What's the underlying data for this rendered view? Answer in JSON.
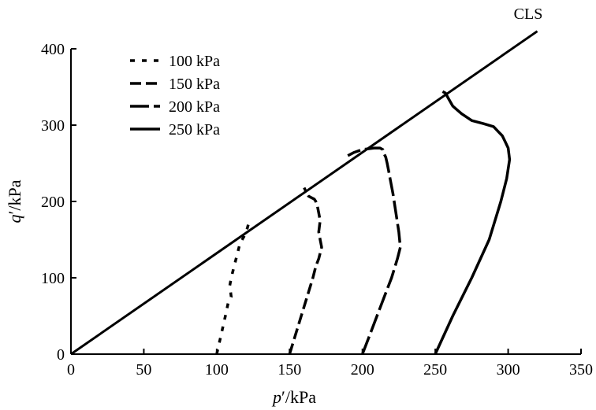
{
  "chart_data": {
    "type": "line",
    "xlabel": "p′/kPa",
    "ylabel": "q′/kPa",
    "xlim": [
      0,
      350
    ],
    "ylim": [
      0,
      400
    ],
    "xticks": [
      0,
      50,
      100,
      150,
      200,
      250,
      300,
      350
    ],
    "yticks": [
      0,
      100,
      200,
      300,
      400
    ],
    "grid": false,
    "legend_position": "top-left",
    "annotation": {
      "text": "CLS",
      "x": 305,
      "y": 430
    },
    "reference_line": {
      "name": "CLS",
      "x": [
        0,
        320
      ],
      "y": [
        0,
        423
      ]
    },
    "series": [
      {
        "name": "100 kPa",
        "dash": "dotted",
        "x": [
          100,
          103,
          106,
          108,
          110,
          109,
          110,
          112,
          114,
          116,
          119,
          121,
          122
        ],
        "y": [
          0,
          25,
          50,
          68,
          75,
          90,
          100,
          115,
          130,
          145,
          155,
          165,
          172
        ]
      },
      {
        "name": "150 kPa",
        "dash": "dashed",
        "x": [
          150,
          154,
          158,
          162,
          166,
          168,
          170,
          172,
          171,
          170,
          171,
          170,
          169,
          168,
          167,
          165,
          163,
          162,
          161,
          160
        ],
        "y": [
          0,
          25,
          50,
          75,
          100,
          115,
          125,
          140,
          150,
          160,
          175,
          185,
          195,
          200,
          203,
          205,
          207,
          210,
          214,
          218
        ]
      },
      {
        "name": "200 kPa",
        "dash": "long-dash",
        "x": [
          200,
          205,
          210,
          215,
          220,
          224,
          226,
          225,
          223,
          221,
          219,
          218,
          217,
          216,
          215,
          214,
          212,
          208,
          200,
          194,
          190
        ],
        "y": [
          0,
          25,
          50,
          75,
          100,
          125,
          140,
          160,
          185,
          210,
          230,
          240,
          250,
          258,
          262,
          268,
          270,
          270,
          268,
          264,
          260
        ]
      },
      {
        "name": "250 kPa",
        "dash": "solid",
        "x": [
          250,
          262,
          275,
          287,
          295,
          299,
          301,
          300,
          298,
          296,
          293,
          290,
          283,
          275,
          268,
          262,
          259,
          257,
          255
        ],
        "y": [
          0,
          50,
          100,
          150,
          200,
          230,
          255,
          270,
          278,
          286,
          292,
          298,
          302,
          306,
          315,
          325,
          335,
          342,
          344
        ]
      }
    ]
  }
}
